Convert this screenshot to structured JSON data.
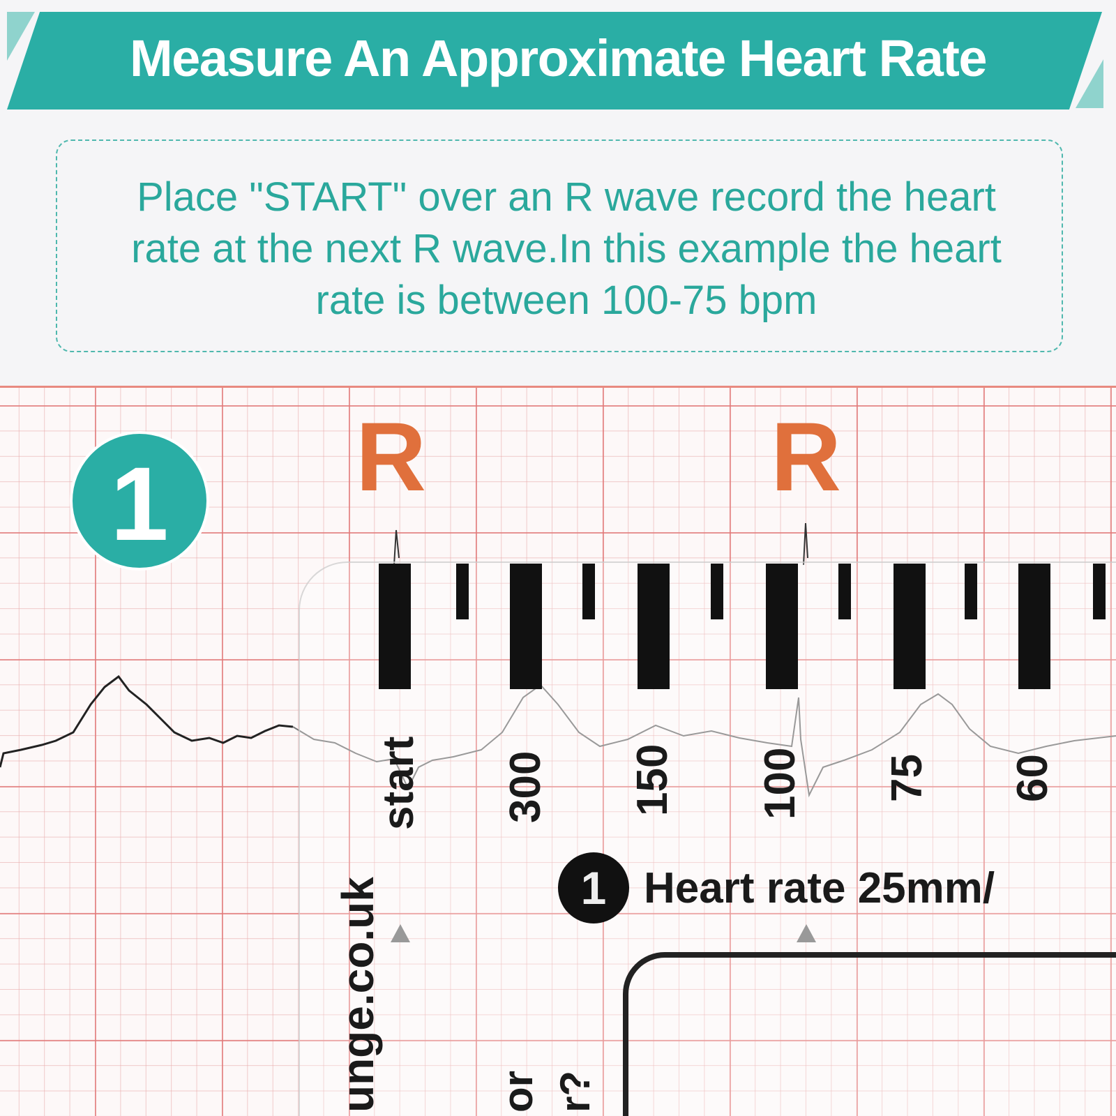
{
  "header": {
    "title": "Measure An Approximate Heart Rate"
  },
  "instructions": {
    "text": "Place \"START\" over an R wave record the heart rate at the next R wave.In this example the heart rate is between 100-75 bpm"
  },
  "step": {
    "number": "1"
  },
  "ecg": {
    "r_labels": [
      "R",
      "R"
    ],
    "ruler": {
      "scale_labels": [
        "start",
        "300",
        "150",
        "100",
        "75",
        "60"
      ],
      "website_text": "unge.co.uk",
      "section_number": "1",
      "section_title": "Heart rate 25mm/",
      "partial_text": [
        "or",
        "r?"
      ]
    }
  },
  "colors": {
    "brand_teal": "#2aaea5",
    "text_teal": "#2aa89c",
    "r_label": "#e0703c",
    "grid": "#e27878"
  }
}
